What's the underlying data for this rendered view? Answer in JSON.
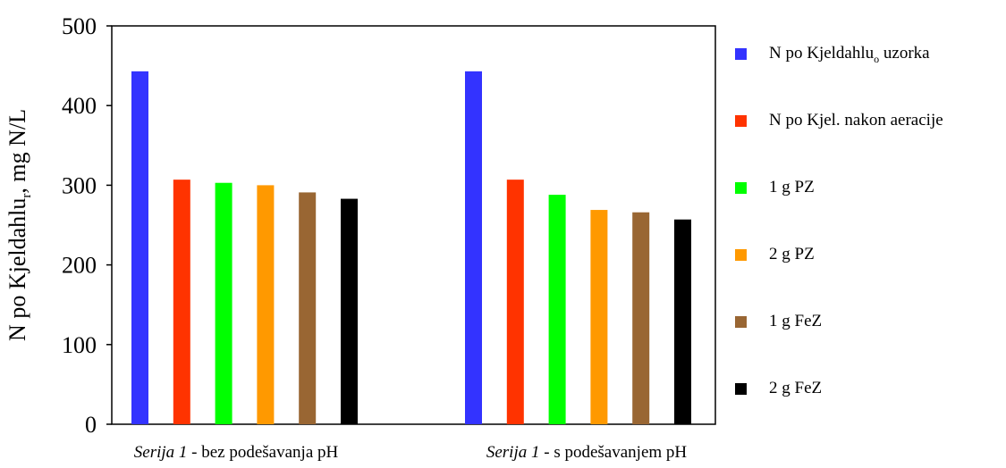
{
  "chart_data": {
    "type": "bar",
    "ylabel": {
      "main": "N po Kjeldahlu",
      "sub": "r",
      "suffix": ", mg N/L"
    },
    "ylim": [
      0,
      500
    ],
    "yticks": [
      "0",
      "100",
      "200",
      "300",
      "400",
      "500"
    ],
    "categories": [
      {
        "italic": "Serija 1",
        "rest": " - bez podešavanja pH"
      },
      {
        "italic": "Serija 1",
        "rest": " - s podešavanjem pH"
      }
    ],
    "series": [
      {
        "name": "N po Kjeldahlu",
        "name_sub": "o",
        "name_suffix": " uzorka",
        "color": "#3333ff",
        "values": [
          443,
          443
        ]
      },
      {
        "name": "N po Kjel. nakon aeracije",
        "color": "#ff3300",
        "values": [
          307,
          307
        ]
      },
      {
        "name": "1 g PZ",
        "color": "#00ff00",
        "values": [
          303,
          288
        ]
      },
      {
        "name": "2 g PZ",
        "color": "#ff9900",
        "values": [
          300,
          269
        ]
      },
      {
        "name": "1 g FeZ",
        "color": "#996633",
        "values": [
          291,
          266
        ]
      },
      {
        "name": "2 g FeZ",
        "color": "#000000",
        "values": [
          283,
          257
        ]
      }
    ],
    "grid": false,
    "legend_position": "right"
  }
}
